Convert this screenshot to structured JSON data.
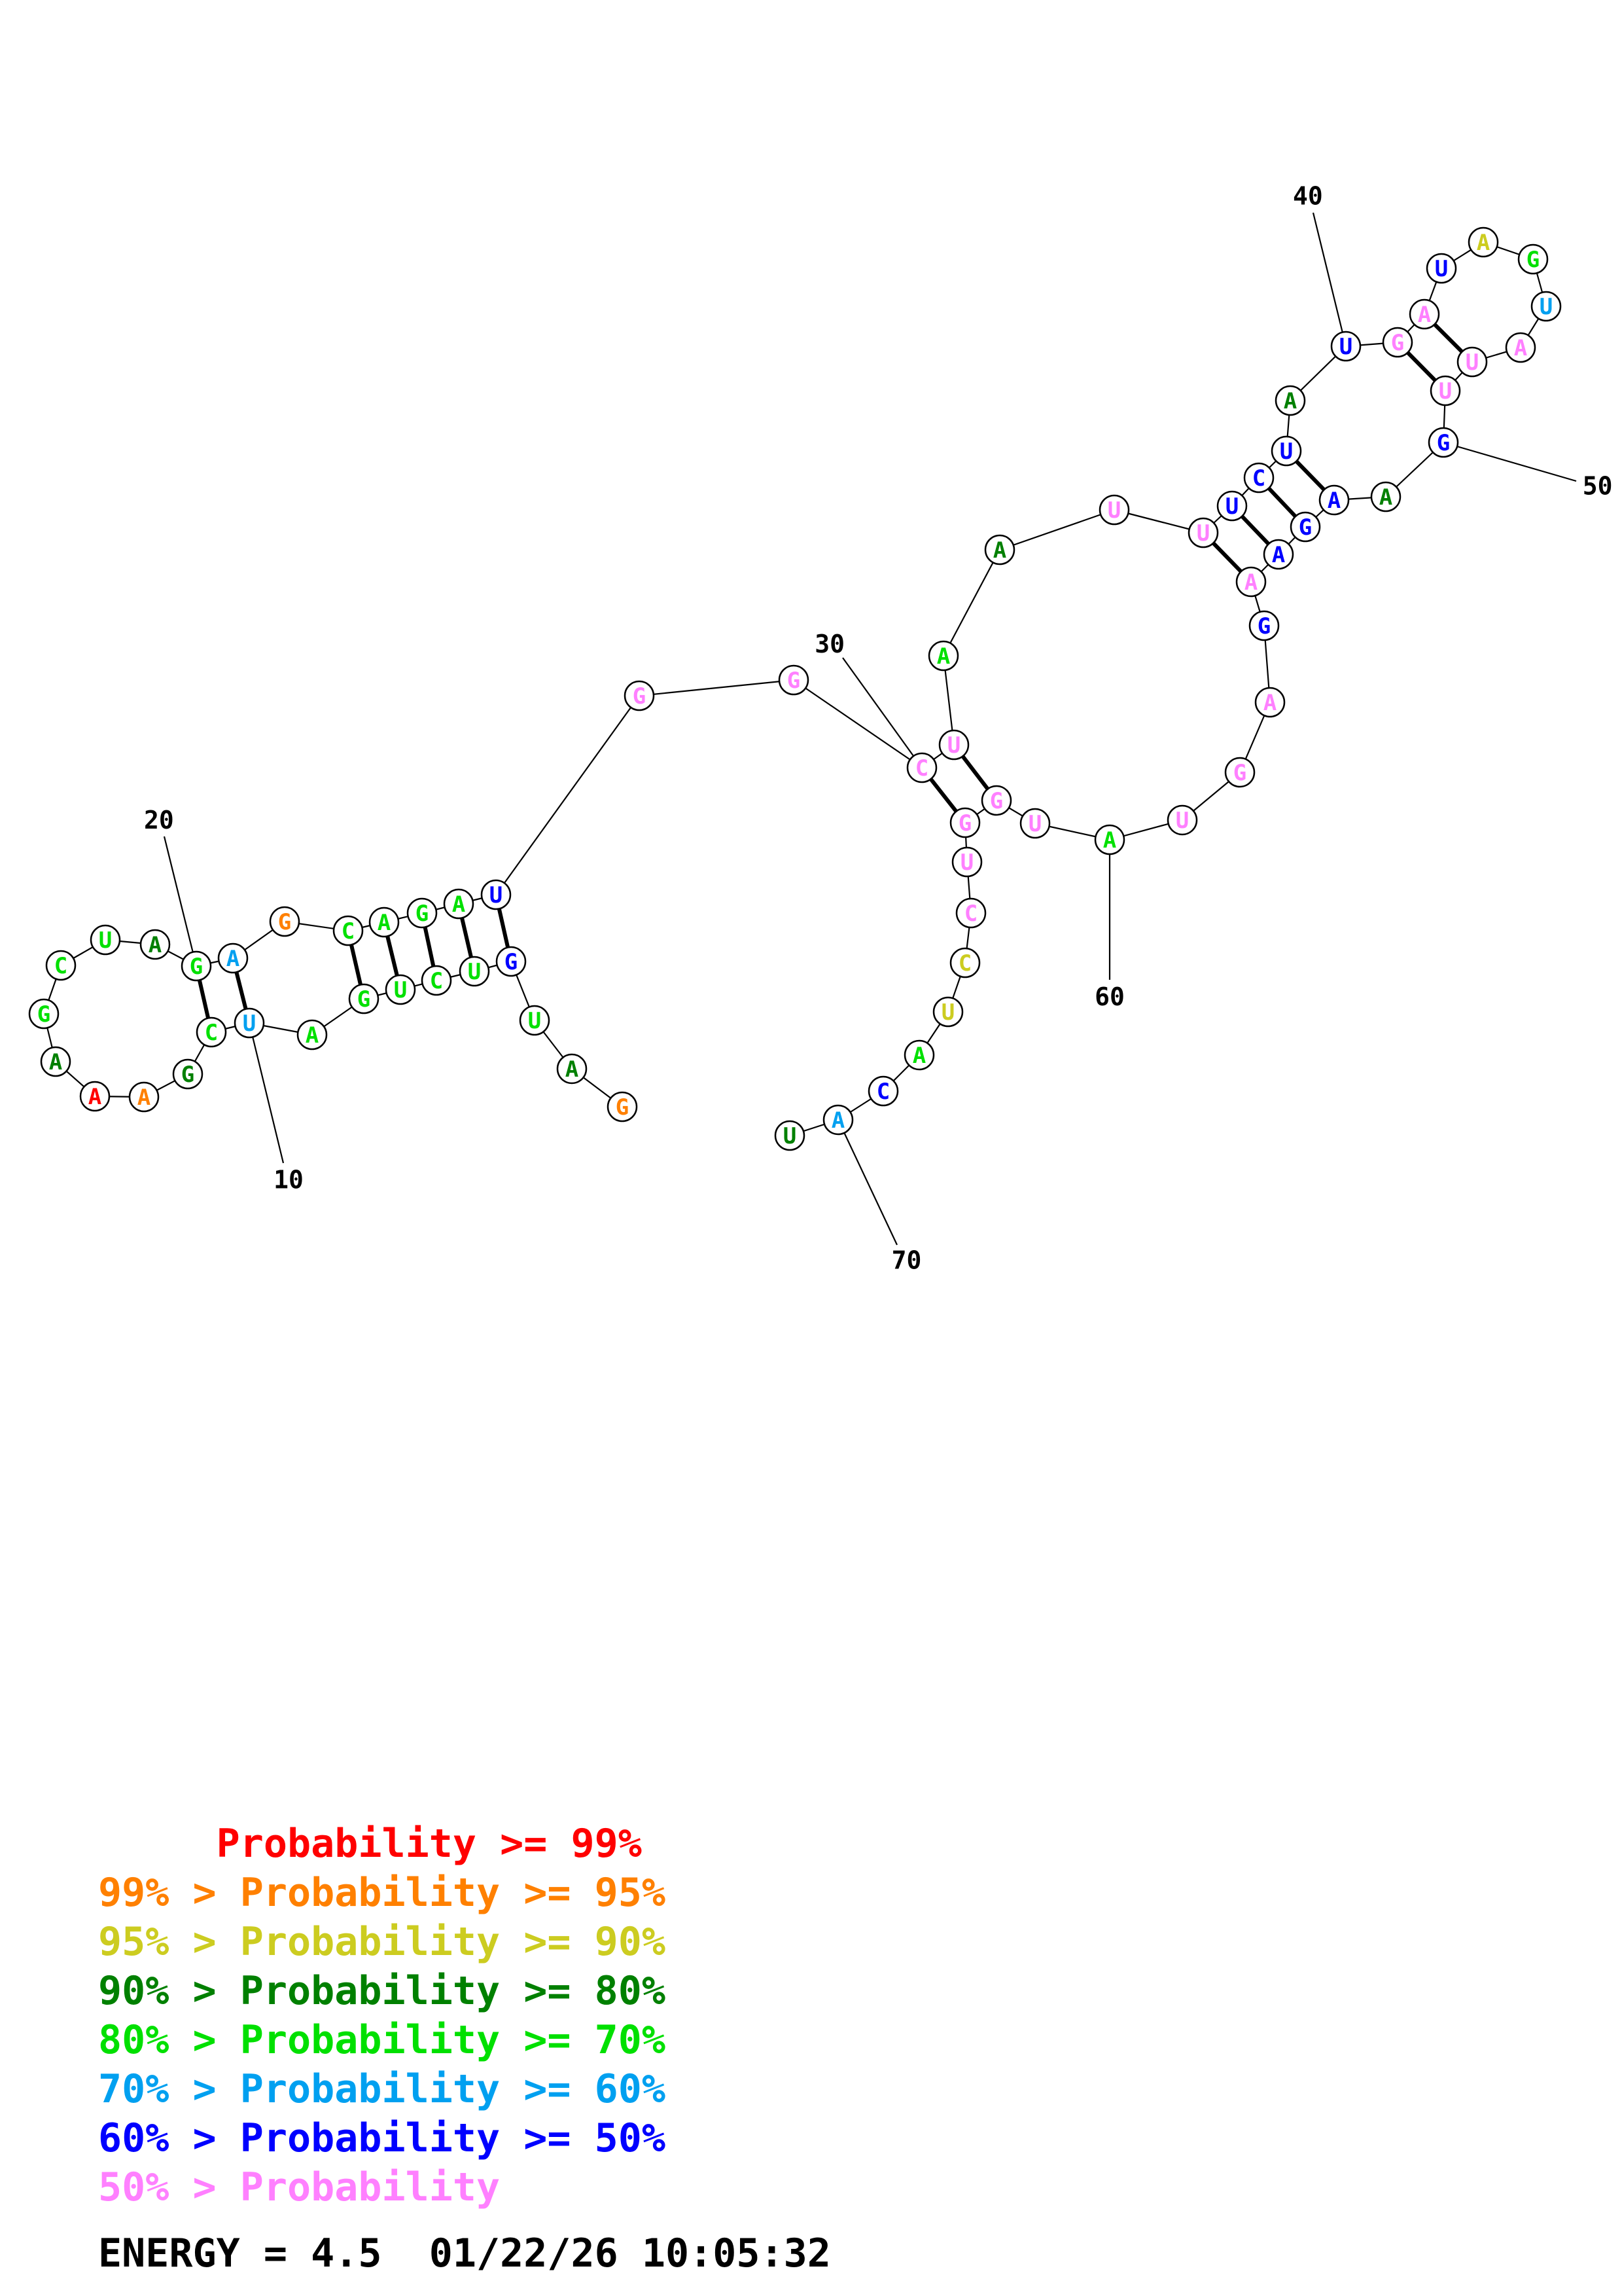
{
  "colors": {
    "red": "#ff0000",
    "orange": "#ff8000",
    "yellow": "#cccc20",
    "darkgreen": "#008000",
    "green": "#00e000",
    "cyan": "#00a0f0",
    "blue": "#0000ff",
    "pink": "#ff80ff"
  },
  "nucleotides": [
    {
      "n": 1,
      "base": "G",
      "c": "orange"
    },
    {
      "n": 2,
      "base": "A",
      "c": "darkgreen"
    },
    {
      "n": 3,
      "base": "U",
      "c": "green"
    },
    {
      "n": 4,
      "base": "G",
      "c": "blue"
    },
    {
      "n": 5,
      "base": "U",
      "c": "green"
    },
    {
      "n": 6,
      "base": "C",
      "c": "green"
    },
    {
      "n": 7,
      "base": "U",
      "c": "green"
    },
    {
      "n": 8,
      "base": "G",
      "c": "green"
    },
    {
      "n": 9,
      "base": "A",
      "c": "green"
    },
    {
      "n": 10,
      "base": "U",
      "c": "cyan"
    },
    {
      "n": 11,
      "base": "C",
      "c": "green"
    },
    {
      "n": 12,
      "base": "G",
      "c": "darkgreen"
    },
    {
      "n": 13,
      "base": "A",
      "c": "orange"
    },
    {
      "n": 14,
      "base": "A",
      "c": "red"
    },
    {
      "n": 15,
      "base": "A",
      "c": "darkgreen"
    },
    {
      "n": 16,
      "base": "G",
      "c": "green"
    },
    {
      "n": 17,
      "base": "C",
      "c": "green"
    },
    {
      "n": 18,
      "base": "U",
      "c": "green"
    },
    {
      "n": 19,
      "base": "A",
      "c": "darkgreen"
    },
    {
      "n": 20,
      "base": "G",
      "c": "green"
    },
    {
      "n": 21,
      "base": "A",
      "c": "cyan"
    },
    {
      "n": 22,
      "base": "G",
      "c": "orange"
    },
    {
      "n": 23,
      "base": "C",
      "c": "green"
    },
    {
      "n": 24,
      "base": "A",
      "c": "green"
    },
    {
      "n": 25,
      "base": "G",
      "c": "green"
    },
    {
      "n": 26,
      "base": "A",
      "c": "green"
    },
    {
      "n": 27,
      "base": "U",
      "c": "blue"
    },
    {
      "n": 28,
      "base": "G",
      "c": "pink"
    },
    {
      "n": 29,
      "base": "G",
      "c": "pink"
    },
    {
      "n": 30,
      "base": "C",
      "c": "pink"
    },
    {
      "n": 31,
      "base": "U",
      "c": "pink"
    },
    {
      "n": 32,
      "base": "A",
      "c": "green"
    },
    {
      "n": 33,
      "base": "A",
      "c": "darkgreen"
    },
    {
      "n": 34,
      "base": "U",
      "c": "pink"
    },
    {
      "n": 35,
      "base": "U",
      "c": "pink"
    },
    {
      "n": 36,
      "base": "U",
      "c": "blue"
    },
    {
      "n": 37,
      "base": "C",
      "c": "blue"
    },
    {
      "n": 38,
      "base": "U",
      "c": "blue"
    },
    {
      "n": 39,
      "base": "A",
      "c": "darkgreen"
    },
    {
      "n": 40,
      "base": "U",
      "c": "blue"
    },
    {
      "n": 41,
      "base": "G",
      "c": "pink"
    },
    {
      "n": 42,
      "base": "A",
      "c": "pink"
    },
    {
      "n": 43,
      "base": "U",
      "c": "blue"
    },
    {
      "n": 44,
      "base": "A",
      "c": "yellow"
    },
    {
      "n": 45,
      "base": "G",
      "c": "green"
    },
    {
      "n": 46,
      "base": "U",
      "c": "cyan"
    },
    {
      "n": 47,
      "base": "A",
      "c": "pink"
    },
    {
      "n": 48,
      "base": "U",
      "c": "pink"
    },
    {
      "n": 49,
      "base": "U",
      "c": "pink"
    },
    {
      "n": 50,
      "base": "G",
      "c": "blue"
    },
    {
      "n": 51,
      "base": "A",
      "c": "darkgreen"
    },
    {
      "n": 52,
      "base": "A",
      "c": "blue"
    },
    {
      "n": 53,
      "base": "G",
      "c": "blue"
    },
    {
      "n": 54,
      "base": "A",
      "c": "blue"
    },
    {
      "n": 55,
      "base": "A",
      "c": "pink"
    },
    {
      "n": 56,
      "base": "G",
      "c": "blue"
    },
    {
      "n": 57,
      "base": "A",
      "c": "pink"
    },
    {
      "n": 58,
      "base": "G",
      "c": "pink"
    },
    {
      "n": 59,
      "base": "U",
      "c": "pink"
    },
    {
      "n": 60,
      "base": "A",
      "c": "green"
    },
    {
      "n": 61,
      "base": "U",
      "c": "pink"
    },
    {
      "n": 62,
      "base": "G",
      "c": "pink"
    },
    {
      "n": 63,
      "base": "G",
      "c": "pink"
    },
    {
      "n": 64,
      "base": "U",
      "c": "pink"
    },
    {
      "n": 65,
      "base": "C",
      "c": "pink"
    },
    {
      "n": 66,
      "base": "C",
      "c": "yellow"
    },
    {
      "n": 67,
      "base": "U",
      "c": "yellow"
    },
    {
      "n": 68,
      "base": "A",
      "c": "green"
    },
    {
      "n": 69,
      "base": "C",
      "c": "blue"
    },
    {
      "n": 70,
      "base": "A",
      "c": "cyan"
    },
    {
      "n": 71,
      "base": "U",
      "c": "darkgreen"
    }
  ],
  "base_pairs": [
    [
      4,
      27
    ],
    [
      5,
      26
    ],
    [
      6,
      25
    ],
    [
      7,
      24
    ],
    [
      8,
      23
    ],
    [
      10,
      21
    ],
    [
      11,
      20
    ],
    [
      30,
      63
    ],
    [
      31,
      62
    ],
    [
      35,
      55
    ],
    [
      36,
      54
    ],
    [
      37,
      53
    ],
    [
      38,
      52
    ],
    [
      41,
      49
    ],
    [
      42,
      48
    ]
  ],
  "tick_labels": [
    {
      "n": 10,
      "label": "10"
    },
    {
      "n": 20,
      "label": "20"
    },
    {
      "n": 30,
      "label": "30"
    },
    {
      "n": 40,
      "label": "40"
    },
    {
      "n": 50,
      "label": "50"
    },
    {
      "n": 60,
      "label": "60"
    },
    {
      "n": 70,
      "label": "70"
    }
  ],
  "legend": [
    {
      "prefix": "     ",
      "text": "Probability >= 99%",
      "c": "red"
    },
    {
      "prefix": "99% > ",
      "text": "Probability >= 95%",
      "c": "orange"
    },
    {
      "prefix": "95% > ",
      "text": "Probability >= 90%",
      "c": "yellow"
    },
    {
      "prefix": "90% > ",
      "text": "Probability >= 80%",
      "c": "darkgreen"
    },
    {
      "prefix": "80% > ",
      "text": "Probability >= 70%",
      "c": "green"
    },
    {
      "prefix": "70% > ",
      "text": "Probability >= 60%",
      "c": "cyan"
    },
    {
      "prefix": "60% > ",
      "text": "Probability >= 50%",
      "c": "blue"
    },
    {
      "prefix": "50% > ",
      "text": "Probability",
      "c": "pink"
    }
  ],
  "energy": "ENERGY = 4.5  01/22/26 10:05:32"
}
